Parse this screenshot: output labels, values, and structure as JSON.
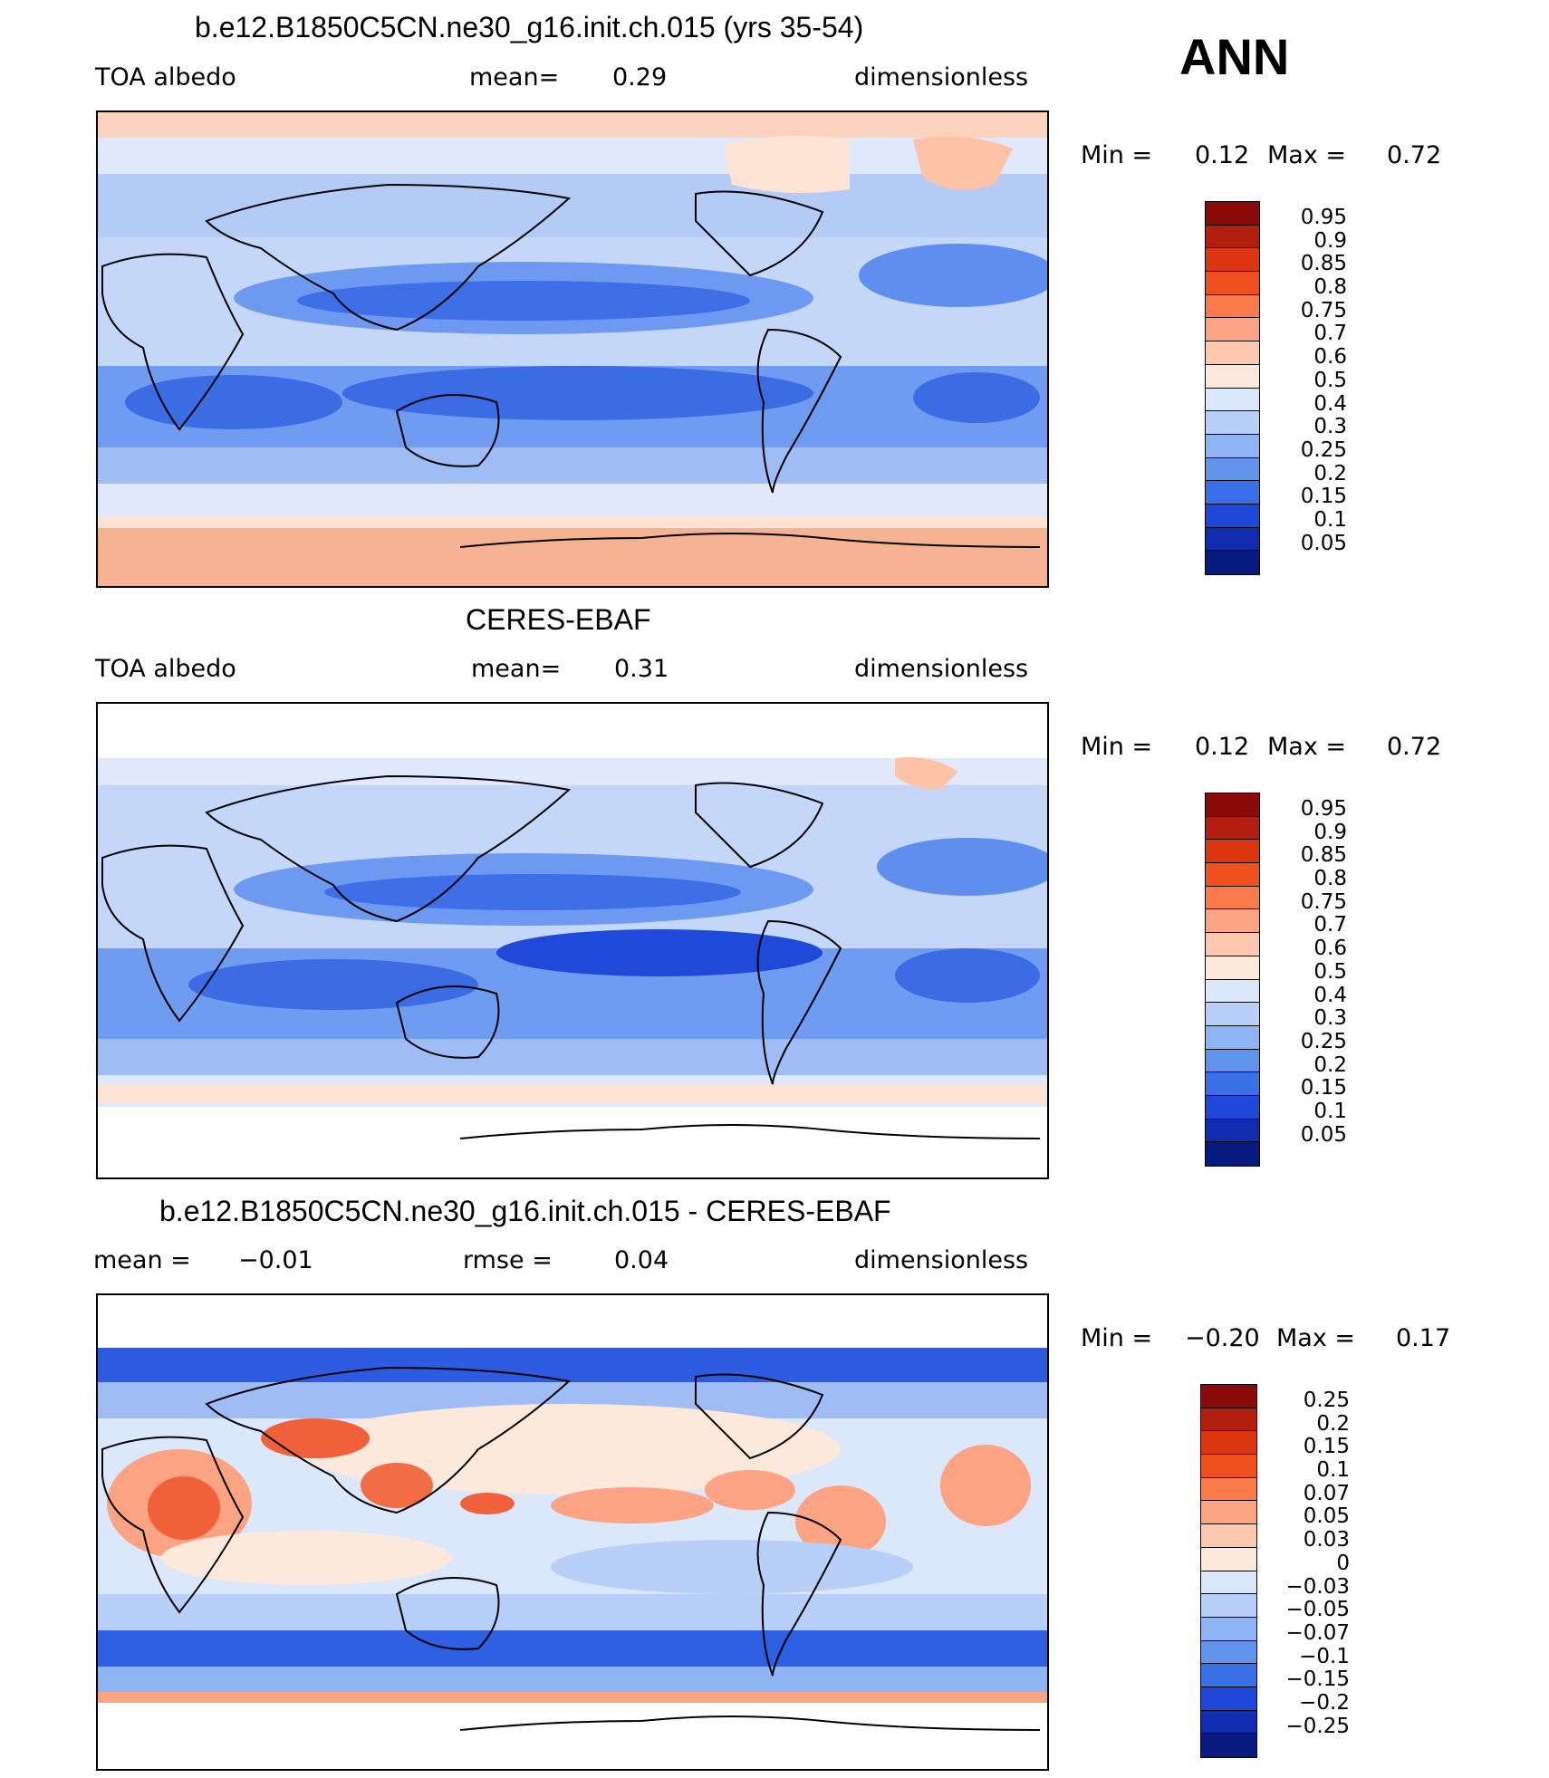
{
  "season": "ANN",
  "panels": [
    {
      "title": "b.e12.B1850C5CN.ne30_g16.init.ch.015 (yrs 35-54)",
      "left_label": "TOA albedo",
      "mid_label": "mean=",
      "mid_value": "0.29",
      "right_label": "dimensionless",
      "min_label": "Min =",
      "min_value": "0.12",
      "max_label": "Max =",
      "max_value": "0.72",
      "colorbar_labels": [
        "0.95",
        "0.9",
        "0.85",
        "0.8",
        "0.75",
        "0.7",
        "0.6",
        "0.5",
        "0.4",
        "0.3",
        "0.25",
        "0.2",
        "0.15",
        "0.1",
        "0.05"
      ]
    },
    {
      "title": "CERES-EBAF",
      "left_label": "TOA albedo",
      "mid_label": "mean=",
      "mid_value": "0.31",
      "right_label": "dimensionless",
      "min_label": "Min =",
      "min_value": "0.12",
      "max_label": "Max =",
      "max_value": "0.72",
      "colorbar_labels": [
        "0.95",
        "0.9",
        "0.85",
        "0.8",
        "0.75",
        "0.7",
        "0.6",
        "0.5",
        "0.4",
        "0.3",
        "0.25",
        "0.2",
        "0.15",
        "0.1",
        "0.05"
      ]
    },
    {
      "title": "b.e12.B1850C5CN.ne30_g16.init.ch.015 - CERES-EBAF",
      "left_label": "mean =",
      "left_value": "−0.01",
      "mid_label": "rmse =",
      "mid_value": "0.04",
      "right_label": "dimensionless",
      "min_label": "Min =",
      "min_value": "−0.20",
      "max_label": "Max =",
      "max_value": "0.17",
      "colorbar_labels": [
        "0.25",
        "0.2",
        "0.15",
        "0.1",
        "0.07",
        "0.05",
        "0.03",
        "0",
        "−0.03",
        "−0.05",
        "−0.07",
        "−0.1",
        "−0.15",
        "−0.2",
        "−0.25"
      ]
    }
  ],
  "colorbar_colors": [
    "#8b0a0a",
    "#b21f0f",
    "#dc3610",
    "#f04f1e",
    "#fa7a4a",
    "#fca383",
    "#fdc8ad",
    "#fde9dc",
    "#dbe8fb",
    "#b8d0f8",
    "#8fb4f3",
    "#5f93ec",
    "#3a6fe8",
    "#2048d8",
    "#102cb0",
    "#061a80"
  ]
}
